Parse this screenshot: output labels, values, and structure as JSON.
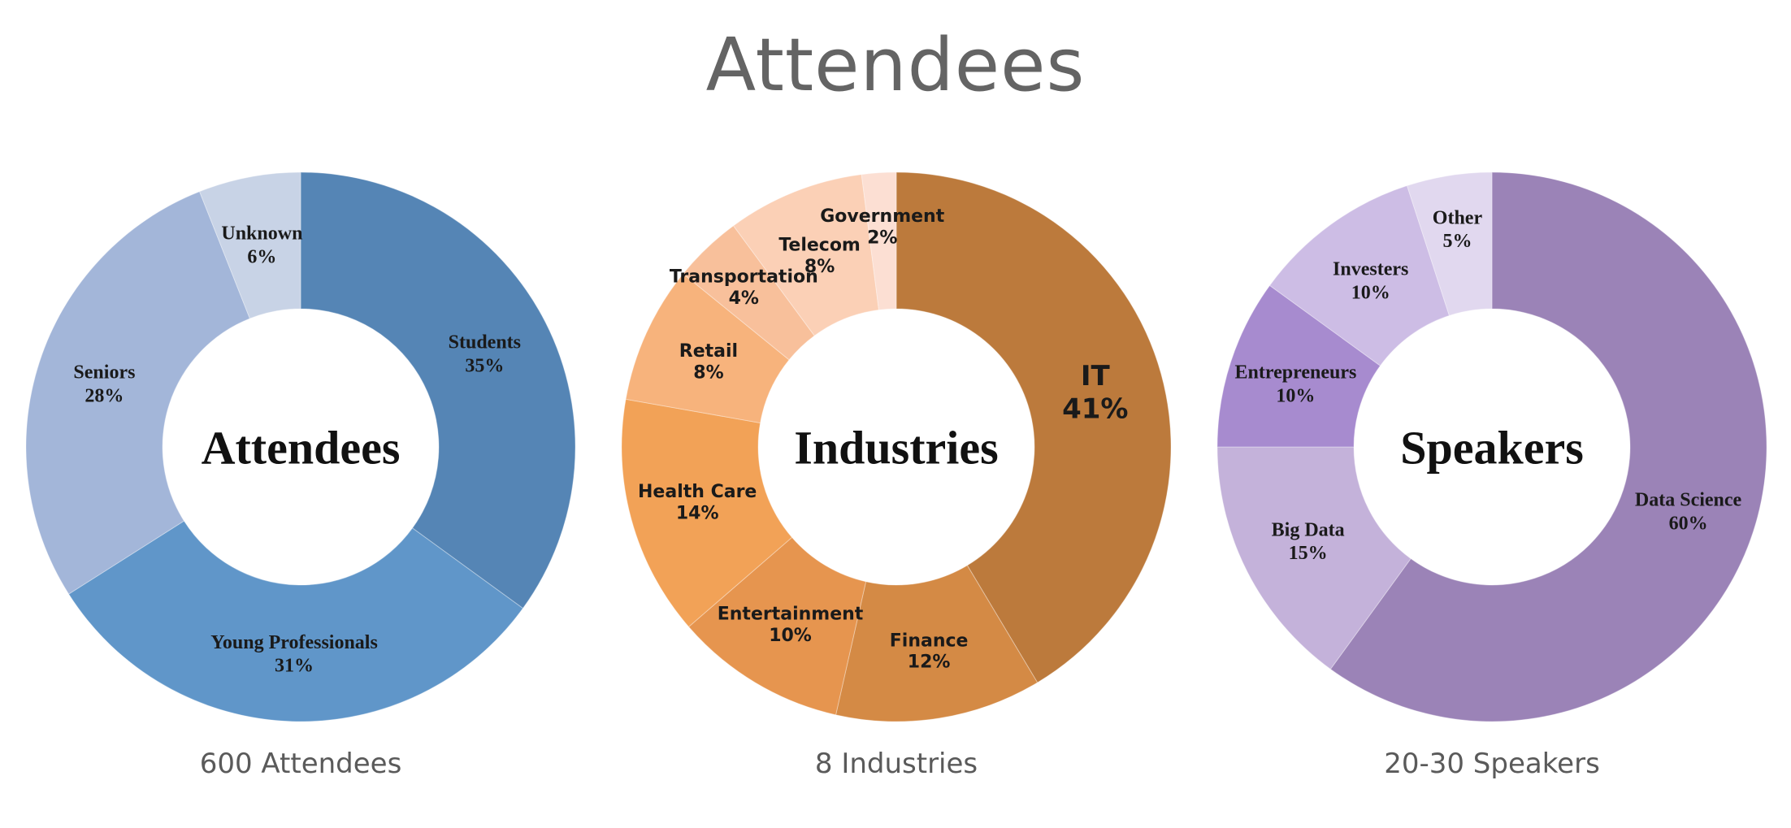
{
  "title": "Attendees",
  "chart_data": [
    {
      "type": "pie",
      "center_label": "Attendees",
      "caption": "600 Attendees",
      "start": "top",
      "direction": "clockwise",
      "colors": [
        "#5585b5",
        "#6096c9",
        "#a3b6d9",
        "#c8d3e6"
      ],
      "slices": [
        {
          "label": "Students",
          "value": 35
        },
        {
          "label": "Young Professionals",
          "value": 31
        },
        {
          "label": "Seniors",
          "value": 28
        },
        {
          "label": "Unknown",
          "value": 6
        }
      ],
      "value_format": "{v}%"
    },
    {
      "type": "pie",
      "center_label": "Industries",
      "caption": "8 Industries",
      "start": "top",
      "direction": "clockwise",
      "colors": [
        "#bc7a3c",
        "#d48a45",
        "#e6954f",
        "#f2a257",
        "#f7b37c",
        "#f8c09b",
        "#fbd0b6",
        "#fcdfd3"
      ],
      "slices": [
        {
          "label": "IT",
          "value": 41
        },
        {
          "label": "Finance",
          "value": 12
        },
        {
          "label": "Entertainment",
          "value": 10
        },
        {
          "label": "Health Care",
          "value": 14
        },
        {
          "label": "Retail",
          "value": 8
        },
        {
          "label": "Transportation",
          "value": 4
        },
        {
          "label": "Telecom",
          "value": 8
        },
        {
          "label": "Government",
          "value": 2
        }
      ],
      "value_format": "{v}%"
    },
    {
      "type": "pie",
      "center_label": "Speakers",
      "caption": "20-30 Speakers",
      "start": "top",
      "direction": "clockwise",
      "colors": [
        "#9b83b7",
        "#c4b2da",
        "#a78bcf",
        "#cdbde5",
        "#e1d8ef"
      ],
      "slices": [
        {
          "label": "Data Science",
          "value": 60
        },
        {
          "label": "Big Data",
          "value": 15
        },
        {
          "label": "Entrepreneurs",
          "value": 10
        },
        {
          "label": "Investers",
          "value": 10
        },
        {
          "label": "Other",
          "value": 5
        }
      ],
      "value_format": "{v}%"
    }
  ]
}
